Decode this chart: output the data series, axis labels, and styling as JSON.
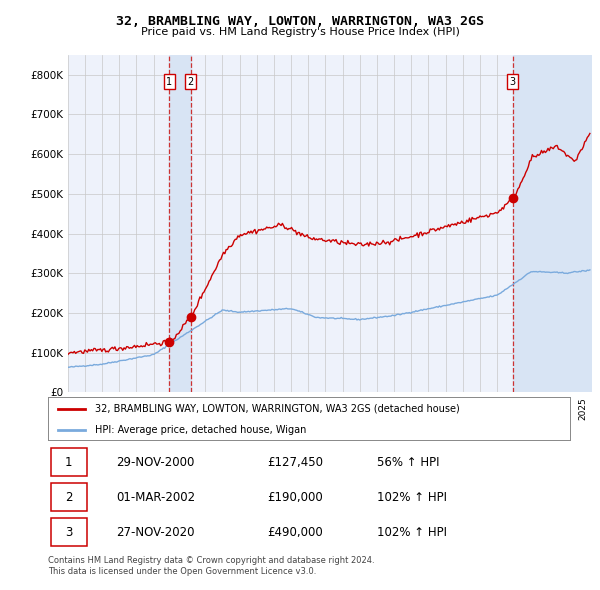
{
  "title": "32, BRAMBLING WAY, LOWTON, WARRINGTON, WA3 2GS",
  "subtitle": "Price paid vs. HM Land Registry's House Price Index (HPI)",
  "ylim": [
    0,
    850000
  ],
  "yticks": [
    0,
    100000,
    200000,
    300000,
    400000,
    500000,
    600000,
    700000,
    800000
  ],
  "ytick_labels": [
    "£0",
    "£100K",
    "£200K",
    "£300K",
    "£400K",
    "£500K",
    "£600K",
    "£700K",
    "£800K"
  ],
  "legend_entries": [
    "32, BRAMBLING WAY, LOWTON, WARRINGTON, WA3 2GS (detached house)",
    "HPI: Average price, detached house, Wigan"
  ],
  "transactions": [
    {
      "label": "1",
      "date": "29-NOV-2000",
      "price_str": "£127,450",
      "pct": "56%",
      "dir": "↑",
      "x_year": 2000.91,
      "y_val": 127450
    },
    {
      "label": "2",
      "date": "01-MAR-2002",
      "price_str": "£190,000",
      "pct": "102%",
      "dir": "↑",
      "x_year": 2002.16,
      "y_val": 190000
    },
    {
      "label": "3",
      "date": "27-NOV-2020",
      "price_str": "£490,000",
      "pct": "102%",
      "dir": "↑",
      "x_year": 2020.91,
      "y_val": 490000
    }
  ],
  "footer": "Contains HM Land Registry data © Crown copyright and database right 2024.\nThis data is licensed under the Open Government Licence v3.0.",
  "bg_color": "#ffffff",
  "plot_bg_color": "#eef2fb",
  "grid_color": "#c8c8c8",
  "red_line_color": "#cc0000",
  "blue_line_color": "#7aaadd",
  "highlight_bg": "#d8e4f4",
  "dashed_line_color": "#cc3333",
  "xmin": 1995,
  "xmax": 2025.5
}
